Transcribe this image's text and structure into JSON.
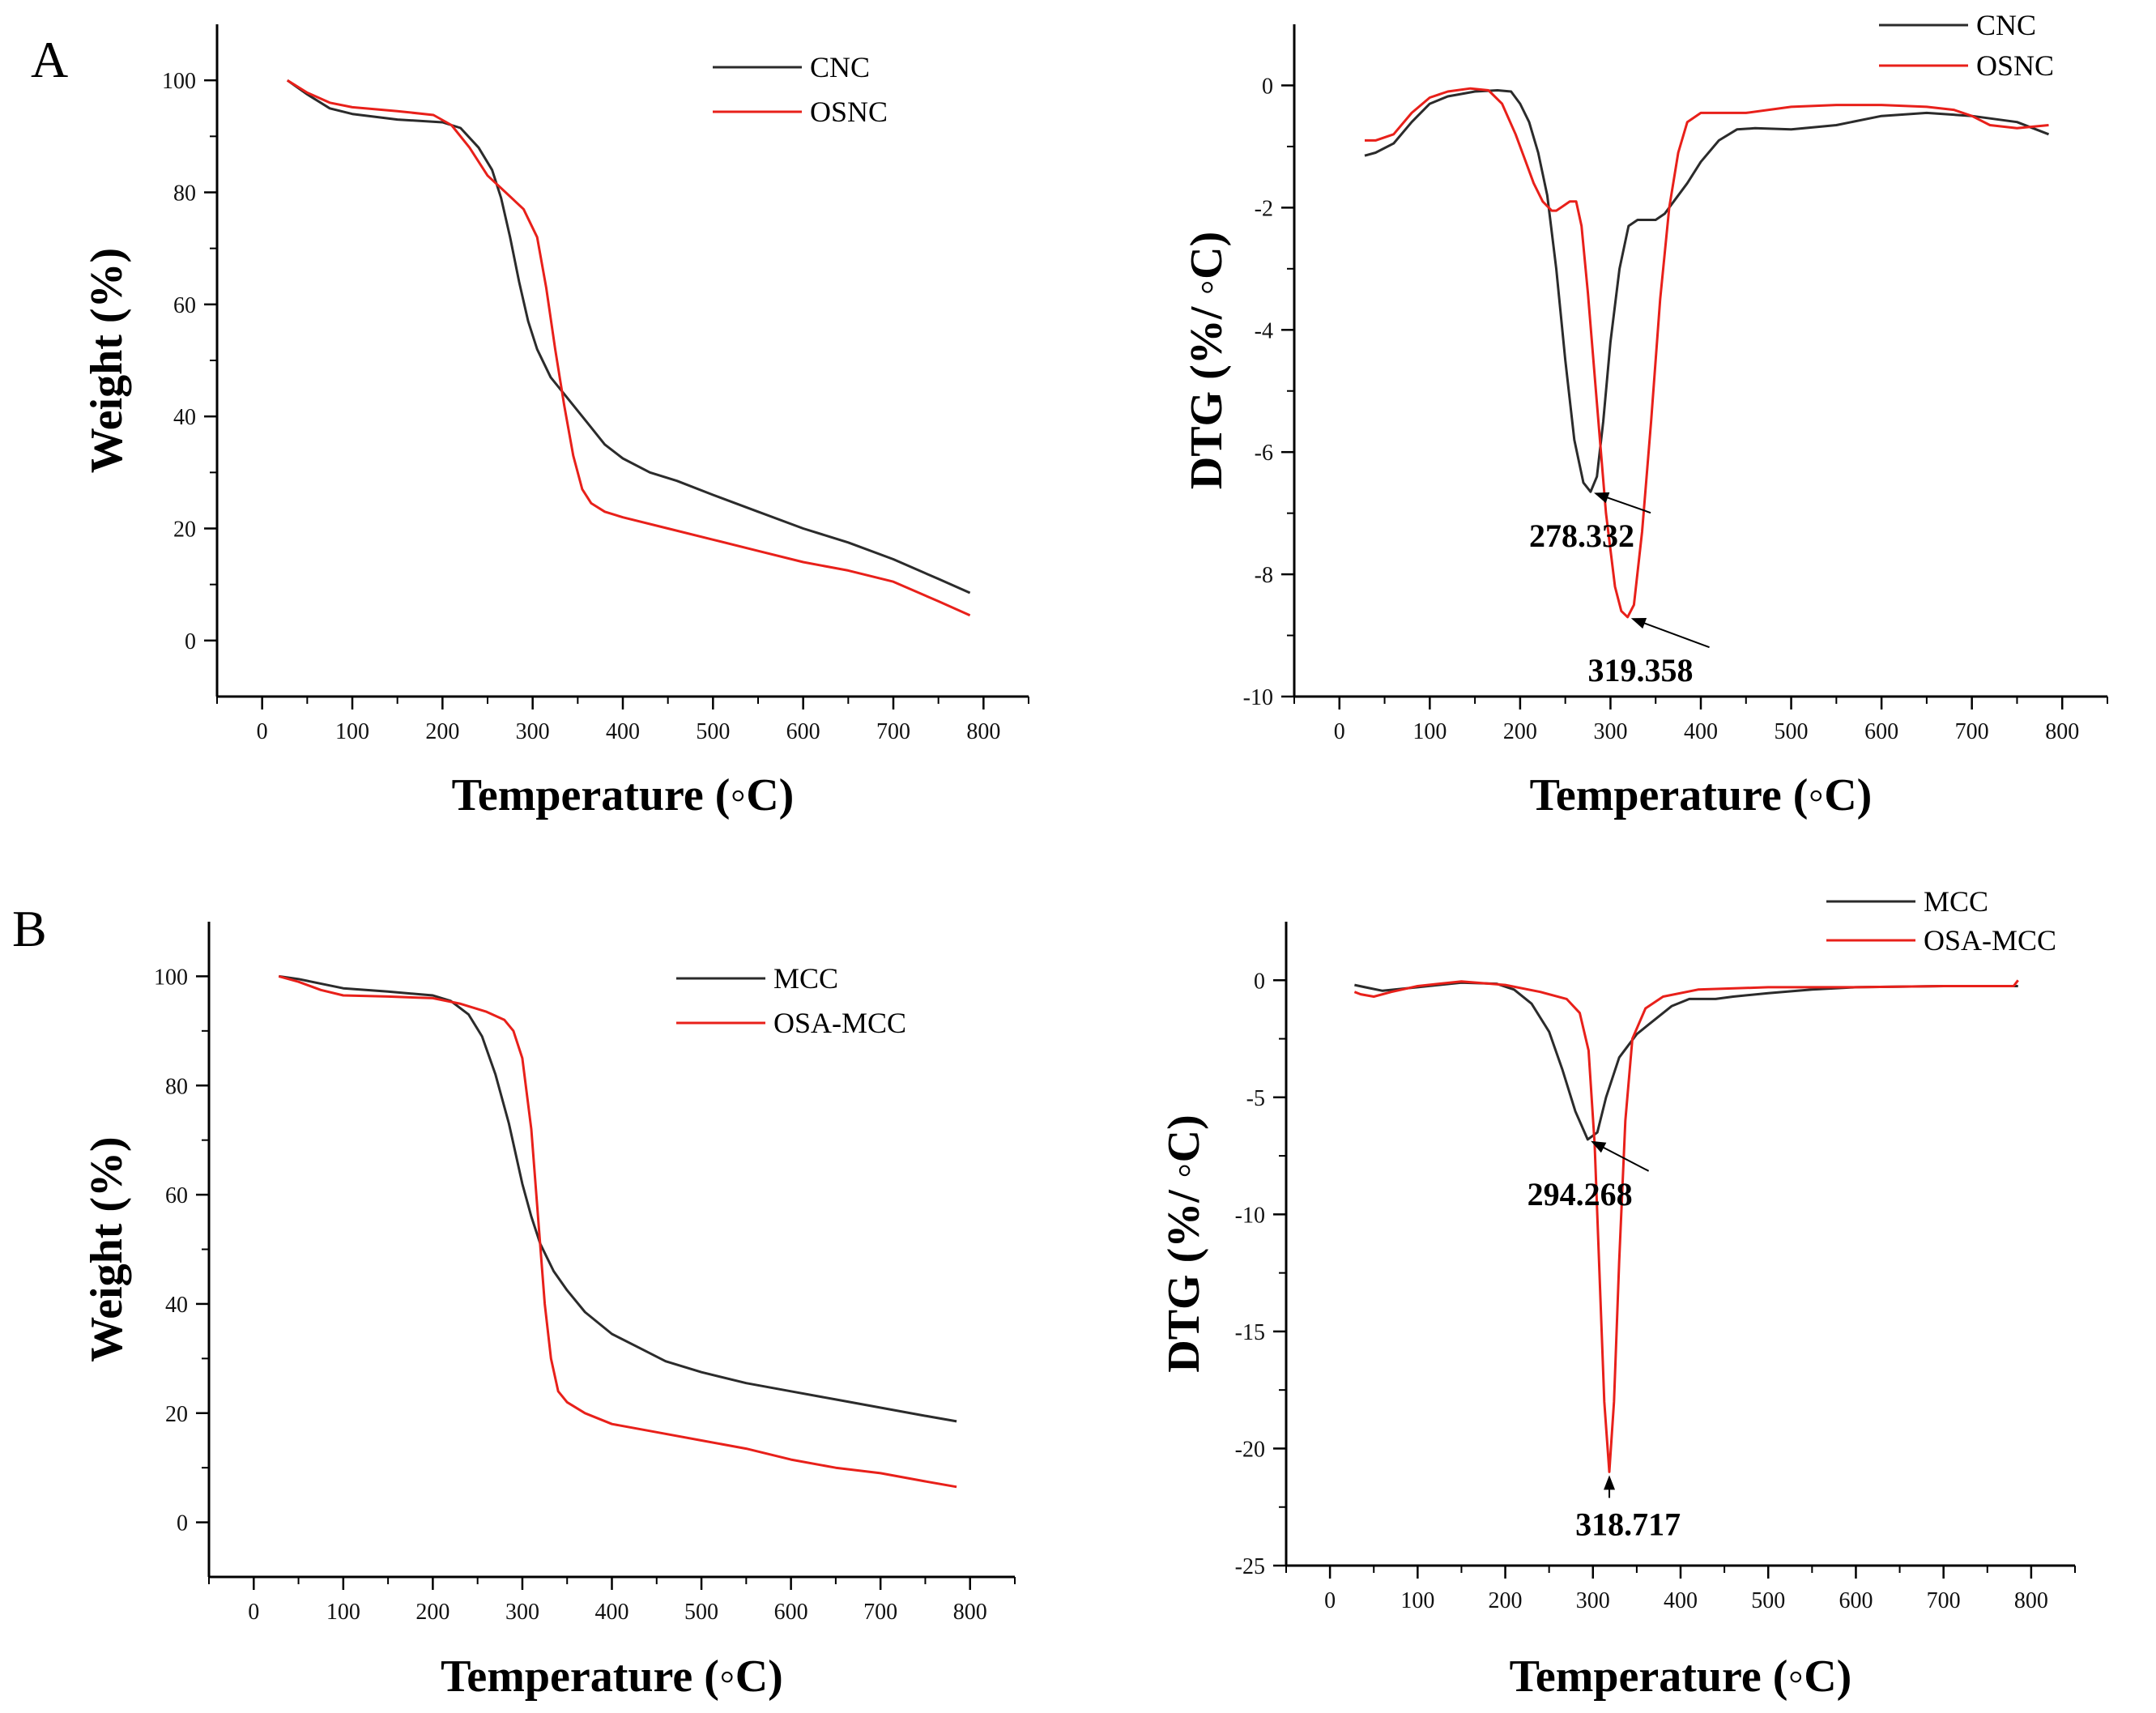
{
  "panel_labels": [
    "A",
    "B"
  ],
  "colors": {
    "black_series": "#2b2b2b",
    "red_series": "#e8201a",
    "axis": "#000000"
  },
  "chart_data": [
    {
      "id": "tga-a",
      "type": "line",
      "panel": "A",
      "xlabel": "Temperature (◦C)",
      "ylabel": "Weight (%)",
      "xlim": [
        -50,
        850
      ],
      "ylim": [
        -10,
        110
      ],
      "xticks": [
        0,
        100,
        200,
        300,
        400,
        500,
        600,
        700,
        800
      ],
      "yticks": [
        0,
        20,
        40,
        60,
        80,
        100
      ],
      "legend_position": "top-right",
      "series": [
        {
          "name": "CNC",
          "color": "#2b2b2b",
          "x": [
            28,
            50,
            75,
            100,
            150,
            200,
            220,
            240,
            255,
            265,
            275,
            285,
            295,
            305,
            320,
            340,
            360,
            380,
            400,
            430,
            460,
            500,
            550,
            600,
            650,
            700,
            750,
            785
          ],
          "y": [
            100,
            97.5,
            95,
            94,
            93,
            92.5,
            91.5,
            88,
            84,
            79,
            72,
            64,
            57,
            52,
            47,
            43,
            39,
            35,
            32.5,
            30,
            28.5,
            26,
            23,
            20,
            17.5,
            14.5,
            11,
            8.5
          ]
        },
        {
          "name": "OSNC",
          "color": "#e8201a",
          "x": [
            28,
            50,
            75,
            100,
            150,
            190,
            210,
            230,
            250,
            270,
            290,
            305,
            315,
            325,
            335,
            345,
            355,
            365,
            380,
            400,
            450,
            500,
            550,
            600,
            650,
            700,
            750,
            785
          ],
          "y": [
            100,
            97.8,
            96,
            95.2,
            94.5,
            93.8,
            92,
            88,
            83,
            80,
            77,
            72,
            63,
            52,
            42,
            33,
            27,
            24.5,
            23,
            22,
            20,
            18,
            16,
            14,
            12.5,
            10.5,
            7,
            4.5
          ]
        }
      ]
    },
    {
      "id": "dtg-a",
      "type": "line",
      "panel": "A",
      "xlabel": "Temperature (◦C)",
      "ylabel": "DTG (%/ ◦C)",
      "xlim": [
        -50,
        850
      ],
      "ylim": [
        -10,
        1
      ],
      "xticks": [
        0,
        100,
        200,
        300,
        400,
        500,
        600,
        700,
        800
      ],
      "yticks": [
        -10,
        -8,
        -6,
        -4,
        -2,
        0
      ],
      "legend_position": "top-right",
      "series": [
        {
          "name": "CNC",
          "color": "#2b2b2b",
          "x": [
            28,
            40,
            60,
            80,
            100,
            120,
            150,
            175,
            190,
            200,
            210,
            220,
            230,
            240,
            250,
            260,
            270,
            278,
            285,
            292,
            300,
            310,
            320,
            330,
            340,
            350,
            360,
            370,
            385,
            400,
            420,
            440,
            460,
            500,
            550,
            600,
            650,
            700,
            750,
            785
          ],
          "y": [
            -1.15,
            -1.1,
            -0.95,
            -0.6,
            -0.3,
            -0.18,
            -0.1,
            -0.08,
            -0.1,
            -0.3,
            -0.6,
            -1.1,
            -1.8,
            -3,
            -4.5,
            -5.8,
            -6.5,
            -6.65,
            -6.4,
            -5.5,
            -4.2,
            -3,
            -2.3,
            -2.2,
            -2.2,
            -2.2,
            -2.1,
            -1.9,
            -1.6,
            -1.25,
            -0.9,
            -0.72,
            -0.7,
            -0.72,
            -0.65,
            -0.5,
            -0.45,
            -0.5,
            -0.6,
            -0.8
          ]
        },
        {
          "name": "OSNC",
          "color": "#e8201a",
          "x": [
            28,
            40,
            60,
            80,
            100,
            120,
            145,
            165,
            180,
            195,
            205,
            215,
            225,
            235,
            240,
            245,
            255,
            262,
            268,
            275,
            285,
            295,
            305,
            312,
            319,
            326,
            335,
            345,
            355,
            365,
            375,
            385,
            400,
            420,
            450,
            500,
            550,
            600,
            650,
            680,
            700,
            720,
            750,
            785
          ],
          "y": [
            -0.9,
            -0.9,
            -0.8,
            -0.45,
            -0.2,
            -0.1,
            -0.05,
            -0.08,
            -0.3,
            -0.8,
            -1.2,
            -1.6,
            -1.9,
            -2.05,
            -2.05,
            -2,
            -1.9,
            -1.9,
            -2.3,
            -3.4,
            -5.2,
            -7,
            -8.2,
            -8.6,
            -8.7,
            -8.5,
            -7.3,
            -5.5,
            -3.5,
            -2,
            -1.1,
            -0.6,
            -0.45,
            -0.45,
            -0.45,
            -0.35,
            -0.32,
            -0.32,
            -0.35,
            -0.4,
            -0.5,
            -0.65,
            -0.7,
            -0.65
          ]
        }
      ],
      "annotations": [
        {
          "label": "278.332",
          "x": 278.332,
          "y": -6.65,
          "text_x": 210,
          "text_y": -7.55
        },
        {
          "label": "319.358",
          "x": 319.358,
          "y": -8.7,
          "text_x": 275,
          "text_y": -9.75
        }
      ]
    },
    {
      "id": "tga-b",
      "type": "line",
      "panel": "B",
      "xlabel": "Temperature (◦C)",
      "ylabel": "Weight (%)",
      "xlim": [
        -50,
        850
      ],
      "ylim": [
        -10,
        110
      ],
      "xticks": [
        0,
        100,
        200,
        300,
        400,
        500,
        600,
        700,
        800
      ],
      "yticks": [
        0,
        20,
        40,
        60,
        80,
        100
      ],
      "legend_position": "top-right",
      "series": [
        {
          "name": "MCC",
          "color": "#2b2b2b",
          "x": [
            28,
            50,
            100,
            150,
            200,
            220,
            240,
            255,
            270,
            285,
            300,
            310,
            320,
            335,
            350,
            370,
            400,
            430,
            460,
            500,
            550,
            600,
            650,
            700,
            750,
            785
          ],
          "y": [
            100,
            99.5,
            97.8,
            97.2,
            96.5,
            95.5,
            93,
            89,
            82,
            73,
            62,
            56,
            51,
            46,
            42.5,
            38.5,
            34.5,
            32,
            29.5,
            27.5,
            25.5,
            24,
            22.5,
            21,
            19.5,
            18.5
          ]
        },
        {
          "name": "OSA-MCC",
          "color": "#e8201a",
          "x": [
            28,
            50,
            75,
            100,
            150,
            200,
            230,
            260,
            280,
            290,
            300,
            310,
            318,
            325,
            332,
            340,
            350,
            370,
            400,
            450,
            500,
            550,
            600,
            650,
            700,
            750,
            785
          ],
          "y": [
            100,
            99,
            97.5,
            96.5,
            96.3,
            96,
            95,
            93.5,
            92,
            90,
            85,
            72,
            55,
            40,
            30,
            24,
            22,
            20,
            18,
            16.5,
            15,
            13.5,
            11.5,
            10,
            9,
            7.5,
            6.5
          ]
        }
      ]
    },
    {
      "id": "dtg-b",
      "type": "line",
      "panel": "B",
      "xlabel": "Temperature (◦C)",
      "ylabel": "DTG (%/ ◦C)",
      "xlim": [
        -50,
        850
      ],
      "ylim": [
        -25,
        2.5
      ],
      "xticks": [
        0,
        100,
        200,
        300,
        400,
        500,
        600,
        700,
        800
      ],
      "yticks": [
        -25,
        -20,
        -15,
        -10,
        -5,
        0
      ],
      "legend_position": "top-right",
      "series": [
        {
          "name": "MCC",
          "color": "#2b2b2b",
          "x": [
            28,
            40,
            60,
            100,
            150,
            190,
            210,
            230,
            250,
            265,
            280,
            294,
            305,
            315,
            330,
            350,
            370,
            390,
            410,
            440,
            460,
            500,
            550,
            600,
            700,
            785
          ],
          "y": [
            -0.2,
            -0.3,
            -0.45,
            -0.3,
            -0.1,
            -0.15,
            -0.4,
            -1,
            -2.2,
            -3.8,
            -5.6,
            -6.8,
            -6.5,
            -5,
            -3.3,
            -2.3,
            -1.7,
            -1.1,
            -0.8,
            -0.8,
            -0.7,
            -0.55,
            -0.4,
            -0.3,
            -0.25,
            -0.25
          ]
        },
        {
          "name": "OSA-MCC",
          "color": "#e8201a",
          "x": [
            28,
            35,
            50,
            70,
            100,
            150,
            200,
            240,
            270,
            285,
            295,
            302,
            308,
            313,
            318.7,
            324,
            330,
            337,
            345,
            360,
            380,
            420,
            500,
            600,
            700,
            780,
            785
          ],
          "y": [
            -0.5,
            -0.6,
            -0.7,
            -0.5,
            -0.25,
            -0.05,
            -0.2,
            -0.5,
            -0.8,
            -1.4,
            -3,
            -7,
            -13,
            -18,
            -21,
            -18,
            -12,
            -6,
            -2.5,
            -1.2,
            -0.7,
            -0.4,
            -0.3,
            -0.3,
            -0.25,
            -0.25,
            0
          ]
        }
      ],
      "annotations": [
        {
          "label": "294.268",
          "x": 294.268,
          "y": -6.8,
          "text_x": 225,
          "text_y": -9.6
        },
        {
          "label": "318.717",
          "x": 318.717,
          "y": -21,
          "text_x": 280,
          "text_y": -23.7
        }
      ]
    }
  ]
}
